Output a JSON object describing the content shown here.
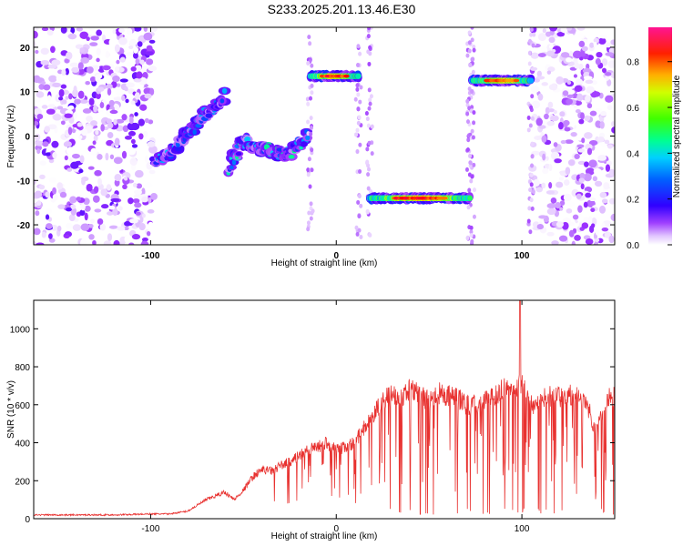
{
  "title": "S233.2025.201.13.46.E30",
  "chart_data": [
    {
      "type": "heatmap",
      "xlabel": "Height of straight line (km)",
      "ylabel": "Frequency (Hz)",
      "xlim": [
        -163,
        150
      ],
      "ylim": [
        -24.5,
        24.5
      ],
      "xticks": [
        -100,
        0,
        100
      ],
      "yticks": [
        -20,
        -10,
        0,
        10,
        20
      ],
      "colorbar": {
        "label": "Normalized spectral amplitude",
        "range": [
          0.0,
          0.95
        ],
        "ticks": [
          0.0,
          0.2,
          0.4,
          0.6,
          0.8
        ],
        "colors": [
          "#ffffff",
          "#e0c0ff",
          "#9b30ff",
          "#3a00ff",
          "#0050ff",
          "#00ccff",
          "#00ff80",
          "#80ff00",
          "#ffff00",
          "#ff8000",
          "#ff0000",
          "#ff1493"
        ]
      },
      "features": [
        {
          "kind": "noise",
          "x_range": [
            -163,
            -98
          ],
          "f_range": [
            -24.5,
            24.5
          ],
          "amplitude": 0.25
        },
        {
          "kind": "noise",
          "x_range": [
            105,
            150
          ],
          "f_range": [
            -24.5,
            24.5
          ],
          "amplitude": 0.2
        },
        {
          "kind": "ridge",
          "points": [
            [
              -98,
              -6
            ],
            [
              -85,
              -2
            ],
            [
              -75,
              3
            ],
            [
              -60,
              9
            ]
          ],
          "amplitude": 0.45
        },
        {
          "kind": "ridge",
          "points": [
            [
              -58,
              -7
            ],
            [
              -50,
              -1
            ],
            [
              -40,
              -3
            ],
            [
              -25,
              -4
            ],
            [
              -15,
              0
            ]
          ],
          "amplitude": 0.5
        },
        {
          "kind": "band",
          "x_range": [
            -14,
            12
          ],
          "frequency": 13.5,
          "amplitude": 0.95
        },
        {
          "kind": "band",
          "x_range": [
            18,
            72
          ],
          "frequency": -14,
          "amplitude": 0.95
        },
        {
          "kind": "band",
          "x_range": [
            73,
            105
          ],
          "frequency": 12.5,
          "amplitude": 0.9
        }
      ]
    },
    {
      "type": "line",
      "xlabel": "Height of straight line (km)",
      "ylabel": "SNR (10 * v/v)",
      "xlim": [
        -163,
        150
      ],
      "ylim": [
        0,
        1150
      ],
      "xticks": [
        -100,
        0,
        100
      ],
      "yticks": [
        0,
        200,
        400,
        600,
        800,
        1000
      ],
      "color": "#e8312f",
      "series": [
        {
          "values_x": [
            -163,
            -140,
            -120,
            -100,
            -90,
            -80,
            -75,
            -70,
            -65,
            -60,
            -55,
            -50,
            -45,
            -40,
            -35,
            -30,
            -25,
            -20,
            -15,
            -10,
            -5,
            0,
            5,
            10,
            15,
            20,
            25,
            30,
            35,
            40,
            45,
            50,
            55,
            60,
            65,
            70,
            75,
            80,
            85,
            90,
            95,
            100,
            105,
            110,
            115,
            120,
            125,
            130,
            135,
            140,
            145,
            150
          ],
          "values_y": [
            20,
            20,
            20,
            25,
            25,
            40,
            70,
            100,
            120,
            140,
            100,
            150,
            220,
            260,
            250,
            280,
            300,
            330,
            360,
            380,
            400,
            360,
            380,
            400,
            480,
            540,
            620,
            650,
            640,
            680,
            650,
            620,
            660,
            650,
            640,
            600,
            600,
            630,
            640,
            690,
            650,
            720,
            600,
            620,
            650,
            640,
            650,
            640,
            610,
            450,
            620,
            650
          ]
        }
      ],
      "annotations": {
        "spike_peak": 1150,
        "spike_at": 99
      }
    }
  ]
}
